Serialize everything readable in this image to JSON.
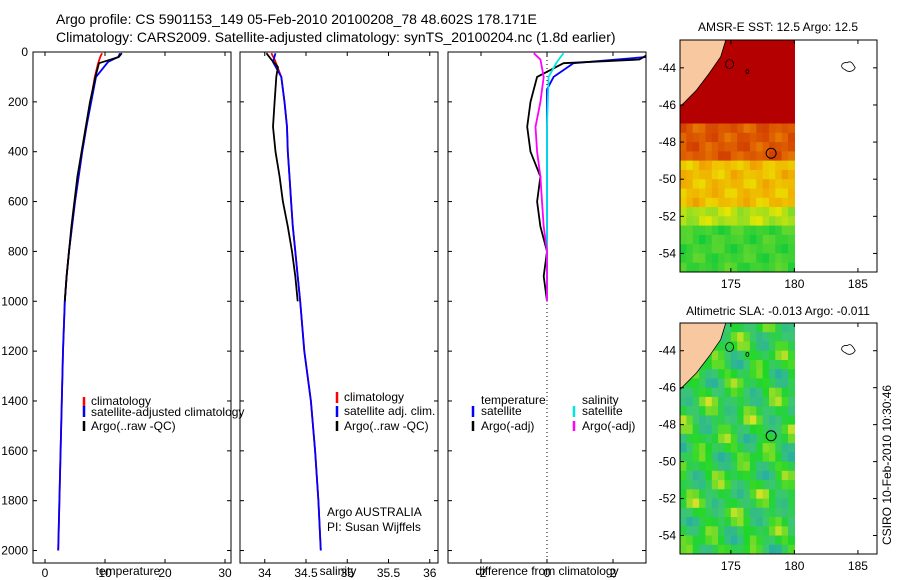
{
  "figure": {
    "title_line1": "Argo profile: CS 5901153_149 05-Feb-2010 20100208_78 48.602S 178.171E",
    "title_line2": "Climatology: CARS2009. Satellite-adjusted climatology: synTS_20100204.nc (1.8d earlier)",
    "credit_argo": "Argo AUSTRALIA",
    "credit_pi": "PI: Susan Wijffels",
    "timestamp": "CSIRO 10-Feb-2010 10:30:46"
  },
  "colors": {
    "climatology": "#ff0000",
    "satellite": "#0000ff",
    "argo": "#000000",
    "sal_satellite": "#00e5e5",
    "sal_argo": "#ff00ff",
    "land": "#f8c8a0",
    "sst_warm": "#b40000"
  },
  "chart_data": [
    {
      "type": "line",
      "id": "temperature",
      "xlabel": "temperature",
      "ylabel": "",
      "xlim": [
        -2,
        31
      ],
      "ylim": [
        2050,
        0
      ],
      "xticks": [
        0,
        10,
        20,
        30
      ],
      "yticks": [
        0,
        200,
        400,
        600,
        800,
        1000,
        1200,
        1400,
        1600,
        1800,
        2000
      ],
      "legend": [
        "climatology",
        "satellite-adjusted climatology",
        "Argo(..raw -QC)"
      ],
      "series": [
        {
          "name": "climatology",
          "color_key": "climatology",
          "points": [
            [
              9.5,
              5
            ],
            [
              9.2,
              20
            ],
            [
              8.8,
              50
            ],
            [
              8.3,
              100
            ],
            [
              7.6,
              200
            ],
            [
              6.9,
              300
            ],
            [
              6.2,
              400
            ],
            [
              5.6,
              500
            ],
            [
              5.0,
              600
            ],
            [
              4.5,
              700
            ],
            [
              4.0,
              800
            ],
            [
              3.6,
              900
            ],
            [
              3.3,
              1000
            ],
            [
              3.0,
              1200
            ],
            [
              2.8,
              1400
            ],
            [
              2.6,
              1600
            ],
            [
              2.4,
              1800
            ],
            [
              2.2,
              2000
            ]
          ]
        },
        {
          "name": "satellite-adjusted climatology",
          "color_key": "satellite",
          "points": [
            [
              12.5,
              5
            ],
            [
              12.2,
              20
            ],
            [
              10.5,
              40
            ],
            [
              8.5,
              100
            ],
            [
              7.7,
              200
            ],
            [
              6.9,
              300
            ],
            [
              6.2,
              400
            ],
            [
              5.6,
              500
            ],
            [
              5.0,
              600
            ],
            [
              4.5,
              700
            ],
            [
              4.0,
              800
            ],
            [
              3.6,
              900
            ],
            [
              3.3,
              1000
            ],
            [
              3.0,
              1200
            ],
            [
              2.8,
              1400
            ],
            [
              2.6,
              1600
            ],
            [
              2.4,
              1800
            ],
            [
              2.2,
              2000
            ]
          ]
        },
        {
          "name": "Argo(..raw -QC)",
          "color_key": "argo",
          "points": [
            [
              12.8,
              5
            ],
            [
              12.3,
              20
            ],
            [
              9.0,
              45
            ],
            [
              8.4,
              100
            ],
            [
              7.5,
              200
            ],
            [
              6.8,
              300
            ],
            [
              6.1,
              400
            ],
            [
              5.4,
              500
            ],
            [
              4.9,
              600
            ],
            [
              4.4,
              700
            ],
            [
              4.0,
              800
            ],
            [
              3.6,
              900
            ],
            [
              3.3,
              1000
            ]
          ]
        }
      ]
    },
    {
      "type": "line",
      "id": "salinity",
      "xlabel": "salinity",
      "xlim": [
        33.7,
        36.1
      ],
      "ylim": [
        2050,
        0
      ],
      "xticks": [
        34,
        34.5,
        35,
        35.5,
        36
      ],
      "legend": [
        "climatology",
        "satellite adj. clim.",
        "Argo(..raw -QC)"
      ],
      "series": [
        {
          "name": "climatology",
          "color_key": "climatology",
          "points": [
            [
              34.08,
              5
            ],
            [
              34.12,
              30
            ],
            [
              34.2,
              100
            ],
            [
              34.24,
              200
            ],
            [
              34.27,
              300
            ],
            [
              34.28,
              400
            ],
            [
              34.3,
              500
            ],
            [
              34.32,
              600
            ],
            [
              34.34,
              700
            ],
            [
              34.37,
              800
            ],
            [
              34.4,
              900
            ],
            [
              34.43,
              1000
            ],
            [
              34.48,
              1200
            ],
            [
              34.56,
              1400
            ],
            [
              34.61,
              1600
            ],
            [
              34.65,
              1800
            ],
            [
              34.68,
              2000
            ]
          ]
        },
        {
          "name": "satellite adj. clim.",
          "color_key": "satellite",
          "points": [
            [
              34.13,
              5
            ],
            [
              34.1,
              40
            ],
            [
              34.2,
              100
            ],
            [
              34.24,
              200
            ],
            [
              34.27,
              300
            ],
            [
              34.28,
              400
            ],
            [
              34.3,
              500
            ],
            [
              34.32,
              600
            ],
            [
              34.34,
              700
            ],
            [
              34.37,
              800
            ],
            [
              34.4,
              900
            ],
            [
              34.43,
              1000
            ],
            [
              34.48,
              1200
            ],
            [
              34.56,
              1400
            ],
            [
              34.61,
              1600
            ],
            [
              34.65,
              1800
            ],
            [
              34.68,
              2000
            ]
          ]
        },
        {
          "name": "Argo(..raw -QC)",
          "color_key": "argo",
          "points": [
            [
              34.02,
              5
            ],
            [
              34.08,
              30
            ],
            [
              34.16,
              60
            ],
            [
              34.14,
              100
            ],
            [
              34.12,
              200
            ],
            [
              34.1,
              300
            ],
            [
              34.13,
              400
            ],
            [
              34.18,
              500
            ],
            [
              34.22,
              600
            ],
            [
              34.28,
              700
            ],
            [
              34.33,
              800
            ],
            [
              34.37,
              900
            ],
            [
              34.4,
              1000
            ]
          ]
        }
      ]
    },
    {
      "type": "line",
      "id": "difference",
      "xlabel": "difference from climatology",
      "xlim": [
        -3,
        3
      ],
      "ylim": [
        2050,
        0
      ],
      "xticks": [
        -2,
        0,
        2
      ],
      "legend_groups": [
        {
          "heading": "temperature",
          "entries": [
            "satellite",
            "Argo(-adj)"
          ]
        },
        {
          "heading": "salinity",
          "entries": [
            "satellite",
            "Argo(-adj)"
          ]
        }
      ],
      "series": [
        {
          "name": "temperature satellite",
          "color_key": "satellite",
          "points": [
            [
              3.0,
              20
            ],
            [
              0.8,
              45
            ],
            [
              0.2,
              100
            ],
            [
              0.0,
              150
            ],
            [
              0.0,
              1000
            ]
          ]
        },
        {
          "name": "temperature Argo(-adj)",
          "color_key": "argo",
          "points": [
            [
              3.0,
              15
            ],
            [
              2.8,
              30
            ],
            [
              0.5,
              45
            ],
            [
              -0.3,
              100
            ],
            [
              -0.5,
              200
            ],
            [
              -0.6,
              300
            ],
            [
              -0.5,
              400
            ],
            [
              -0.2,
              500
            ],
            [
              -0.3,
              600
            ],
            [
              -0.2,
              700
            ],
            [
              0.0,
              800
            ],
            [
              -0.1,
              900
            ],
            [
              0.0,
              1000
            ]
          ]
        },
        {
          "name": "salinity satellite",
          "color_key": "sal_satellite",
          "points": [
            [
              0.5,
              5
            ],
            [
              0.3,
              40
            ],
            [
              0.05,
              100
            ],
            [
              0.0,
              300
            ],
            [
              0.0,
              1000
            ]
          ]
        },
        {
          "name": "salinity Argo(-adj)",
          "color_key": "sal_argo",
          "points": [
            [
              -0.4,
              5
            ],
            [
              -0.2,
              30
            ],
            [
              -0.1,
              100
            ],
            [
              -0.2,
              200
            ],
            [
              -0.35,
              300
            ],
            [
              -0.3,
              400
            ],
            [
              -0.2,
              500
            ],
            [
              -0.15,
              600
            ],
            [
              -0.1,
              700
            ],
            [
              0.0,
              800
            ],
            [
              0.0,
              1000
            ]
          ]
        }
      ]
    },
    {
      "type": "heatmap",
      "id": "sst_map",
      "title": "AMSR-E SST: 12.5  Argo: 12.5",
      "xlim": [
        171,
        186.5
      ],
      "ylim": [
        -55,
        -42.5
      ],
      "xticks": [
        175,
        180,
        185
      ],
      "yticks": [
        -44,
        -46,
        -48,
        -50,
        -52,
        -54
      ],
      "data_lon_max": 180,
      "argo_position": [
        178.171,
        -48.602
      ],
      "sst_value": 12.5,
      "argo_value": 12.5
    },
    {
      "type": "heatmap",
      "id": "sla_map",
      "title": "Altimetric SLA: -0.013  Argo: -0.011",
      "xlim": [
        171,
        186.5
      ],
      "ylim": [
        -55,
        -42.5
      ],
      "xticks": [
        175,
        180,
        185
      ],
      "yticks": [
        -44,
        -46,
        -48,
        -50,
        -52,
        -54
      ],
      "data_lon_max": 180,
      "argo_position": [
        178.171,
        -48.602
      ],
      "sla_value": -0.013,
      "argo_value": -0.011
    }
  ]
}
